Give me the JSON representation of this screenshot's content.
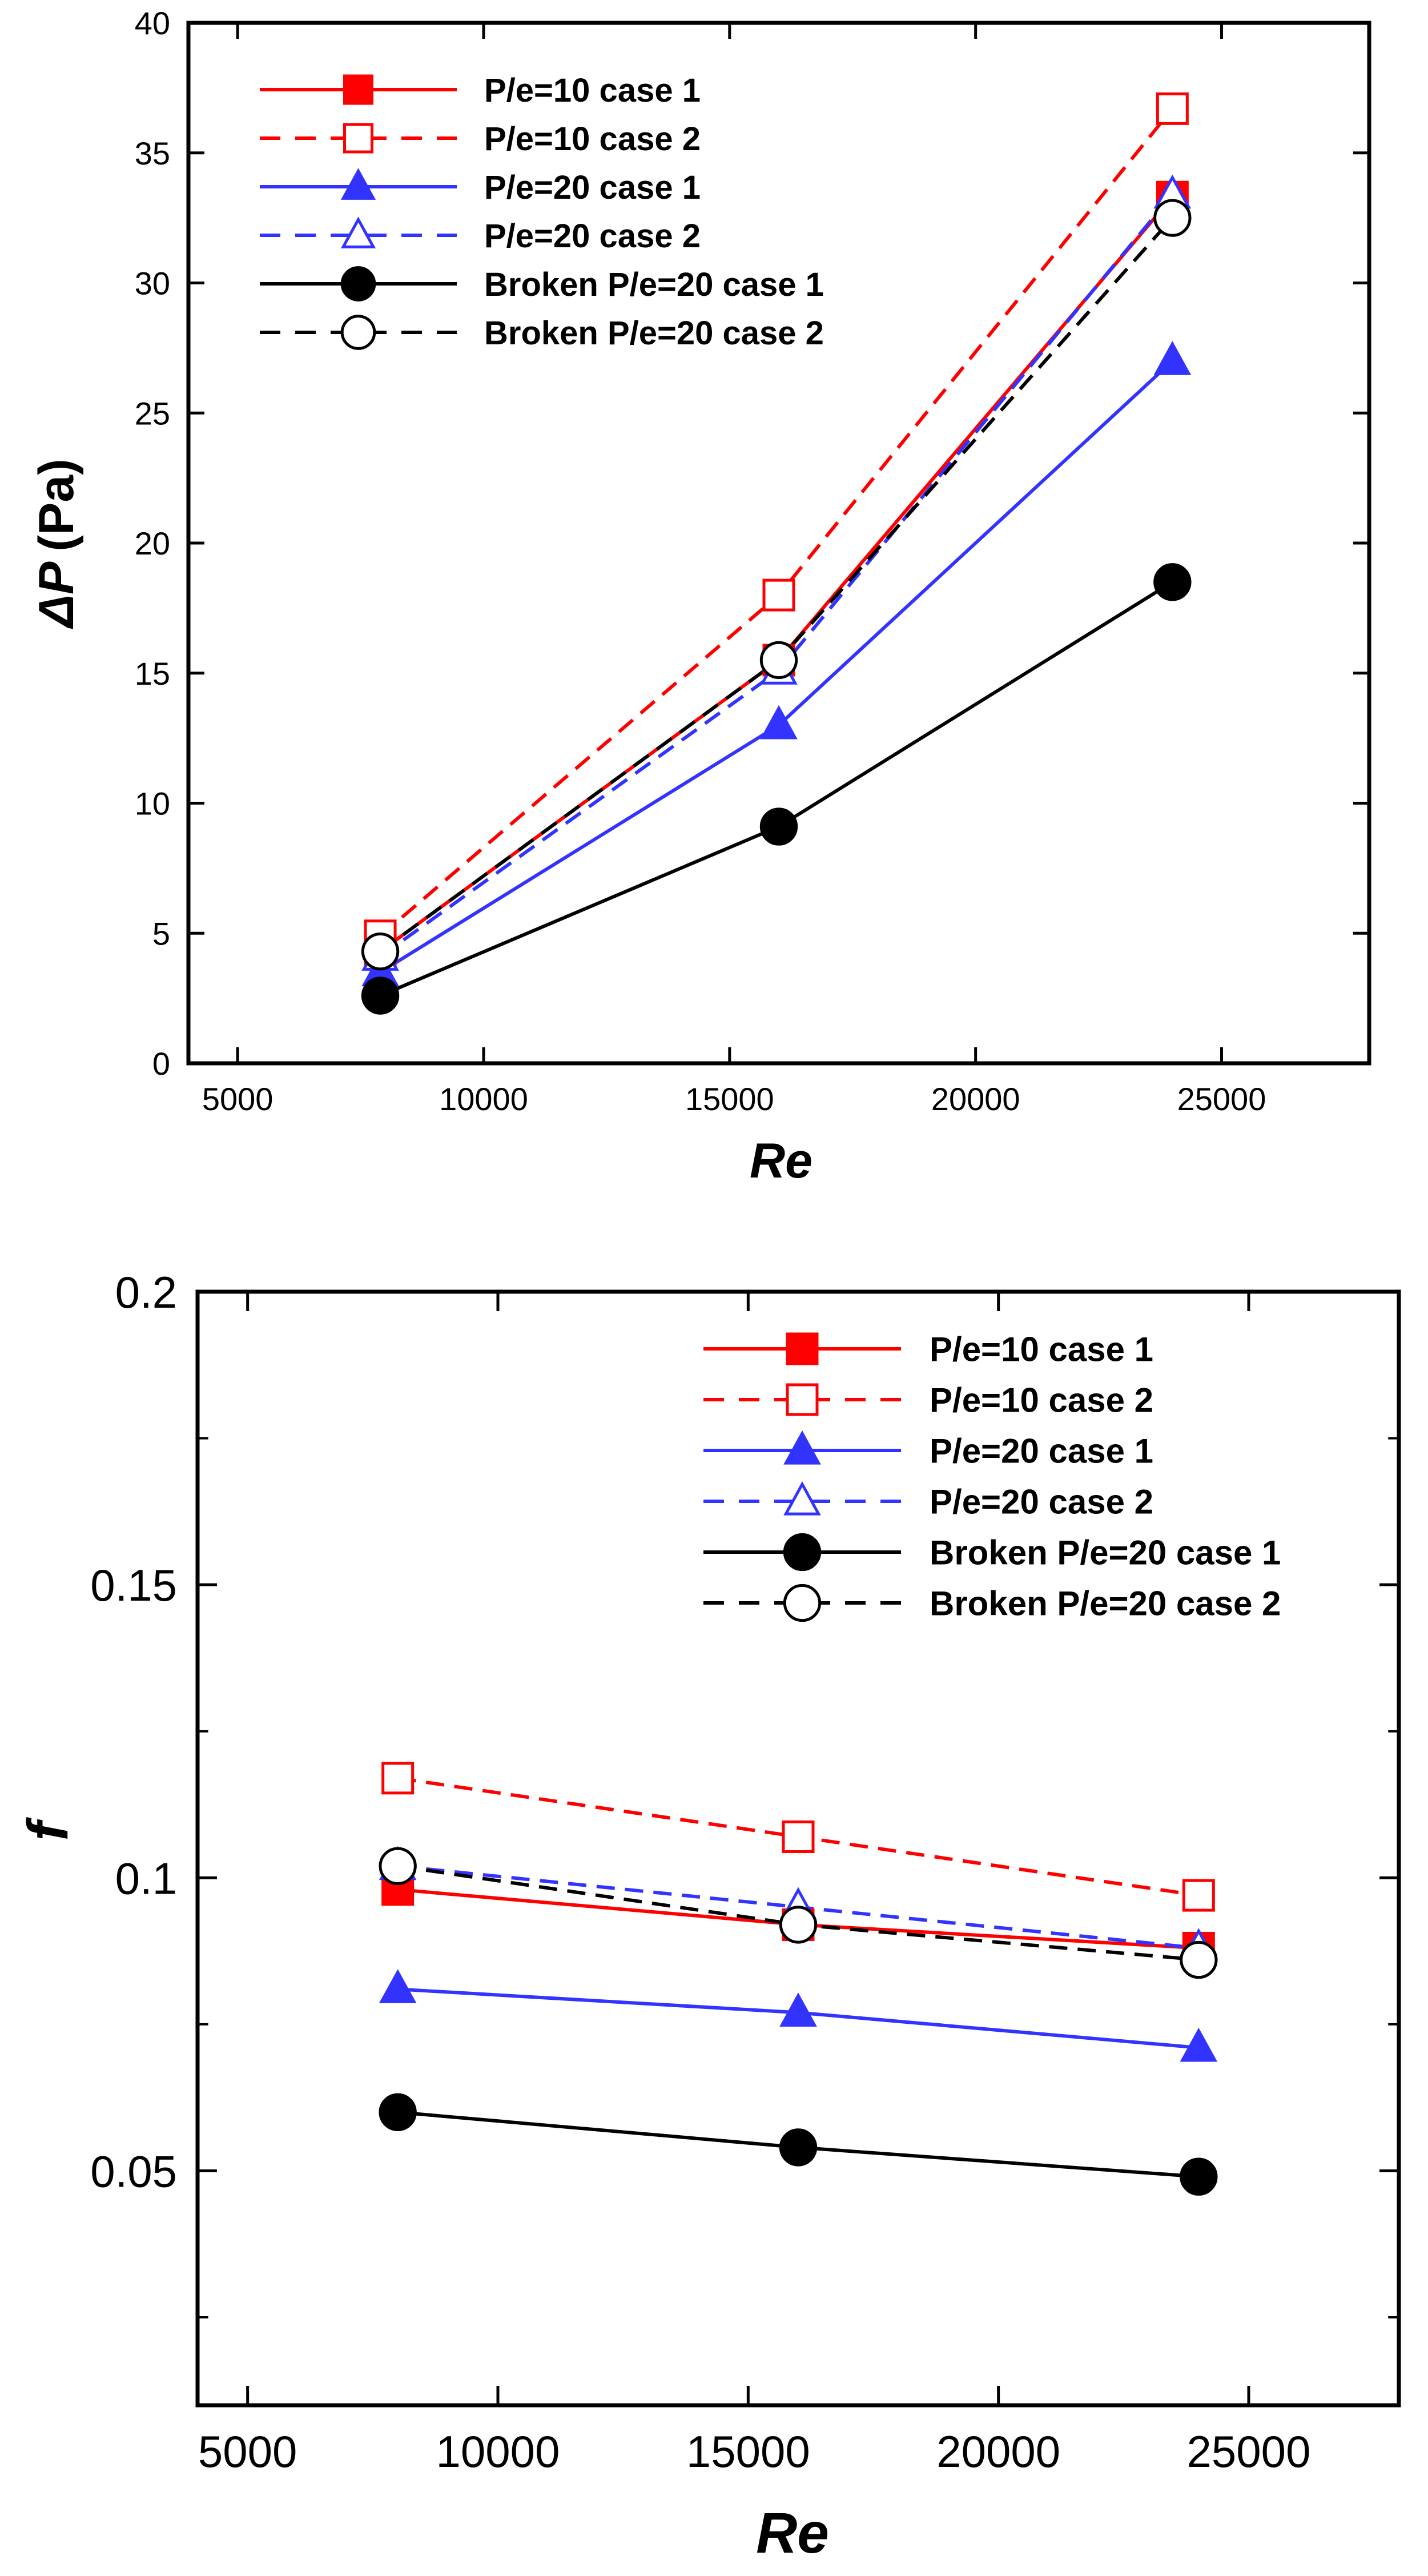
{
  "chart_data": [
    {
      "type": "line",
      "title": "",
      "xlabel": "Re",
      "ylabel_symbol": "ΔP",
      "ylabel_unit": "(Pa)",
      "xlim": [
        4000,
        28000
      ],
      "ylim": [
        0,
        40
      ],
      "xticks": [
        5000,
        10000,
        15000,
        20000,
        25000
      ],
      "yticks": [
        0,
        5,
        10,
        15,
        20,
        25,
        30,
        35,
        40
      ],
      "x_tick_labels": [
        "5000",
        "10000",
        "15000",
        "20000",
        "25000"
      ],
      "y_tick_labels": [
        "0",
        "5",
        "10",
        "15",
        "20",
        "25",
        "30",
        "35",
        "40"
      ],
      "grid": false,
      "legend_position": "top-left",
      "series": [
        {
          "name": "P/e=10 case 1",
          "color": "#ff0000",
          "dash": "solid",
          "marker": "square",
          "filled": true,
          "x": [
            7900,
            16000,
            24000
          ],
          "values": [
            4.3,
            15.5,
            33.3
          ]
        },
        {
          "name": "P/e=10 case 2",
          "color": "#ff0000",
          "dash": "dashed",
          "marker": "square",
          "filled": false,
          "x": [
            7900,
            16000,
            24000
          ],
          "values": [
            4.9,
            18.0,
            36.7
          ]
        },
        {
          "name": "P/e=20 case 1",
          "color": "#3333ff",
          "dash": "solid",
          "marker": "triangle",
          "filled": true,
          "x": [
            7900,
            16000,
            24000
          ],
          "values": [
            3.5,
            13.0,
            27.0
          ]
        },
        {
          "name": "P/e=20 case 2",
          "color": "#3333ff",
          "dash": "dashed",
          "marker": "triangle",
          "filled": false,
          "x": [
            7900,
            16000,
            24000
          ],
          "values": [
            4.1,
            15.1,
            33.4
          ]
        },
        {
          "name": "Broken P/e=20 case 1",
          "color": "#000000",
          "dash": "solid",
          "marker": "circle",
          "filled": true,
          "x": [
            7900,
            16000,
            24000
          ],
          "values": [
            2.6,
            9.1,
            18.5
          ]
        },
        {
          "name": "Broken P/e=20 case 2",
          "color": "#000000",
          "dash": "dashed",
          "marker": "circle",
          "filled": false,
          "x": [
            7900,
            16000,
            24000
          ],
          "values": [
            4.3,
            15.5,
            32.5
          ]
        }
      ]
    },
    {
      "type": "line",
      "title": "",
      "xlabel": "Re",
      "ylabel": "f",
      "xlim": [
        4000,
        28000
      ],
      "ylim": [
        0.01,
        0.2
      ],
      "xticks": [
        5000,
        10000,
        15000,
        20000,
        25000
      ],
      "yticks": [
        0.05,
        0.1,
        0.15,
        0.2
      ],
      "x_tick_labels": [
        "5000",
        "10000",
        "15000",
        "20000",
        "25000"
      ],
      "y_tick_labels": [
        "0.05",
        "0.1",
        "0.15",
        "0.2"
      ],
      "y_minor_ticks": [
        0.025,
        0.075,
        0.125,
        0.175
      ],
      "grid": false,
      "legend_position": "top-right",
      "series": [
        {
          "name": "P/e=10 case 1",
          "color": "#ff0000",
          "dash": "solid",
          "marker": "square",
          "filled": true,
          "x": [
            8000,
            16000,
            24000
          ],
          "values": [
            0.098,
            0.092,
            0.088
          ]
        },
        {
          "name": "P/e=10 case 2",
          "color": "#ff0000",
          "dash": "dashed",
          "marker": "square",
          "filled": false,
          "x": [
            8000,
            16000,
            24000
          ],
          "values": [
            0.117,
            0.107,
            0.097
          ]
        },
        {
          "name": "P/e=20 case 1",
          "color": "#3333ff",
          "dash": "solid",
          "marker": "triangle",
          "filled": true,
          "x": [
            8000,
            16000,
            24000
          ],
          "values": [
            0.081,
            0.077,
            0.071
          ]
        },
        {
          "name": "P/e=20 case 2",
          "color": "#3333ff",
          "dash": "dashed",
          "marker": "triangle",
          "filled": false,
          "x": [
            8000,
            16000,
            24000
          ],
          "values": [
            0.102,
            0.095,
            0.088
          ]
        },
        {
          "name": "Broken P/e=20 case 1",
          "color": "#000000",
          "dash": "solid",
          "marker": "circle",
          "filled": true,
          "x": [
            8000,
            16000,
            24000
          ],
          "values": [
            0.06,
            0.054,
            0.049
          ]
        },
        {
          "name": "Broken P/e=20 case 2",
          "color": "#000000",
          "dash": "dashed",
          "marker": "circle",
          "filled": false,
          "x": [
            8000,
            16000,
            24000
          ],
          "values": [
            0.102,
            0.092,
            0.086
          ]
        }
      ]
    }
  ]
}
